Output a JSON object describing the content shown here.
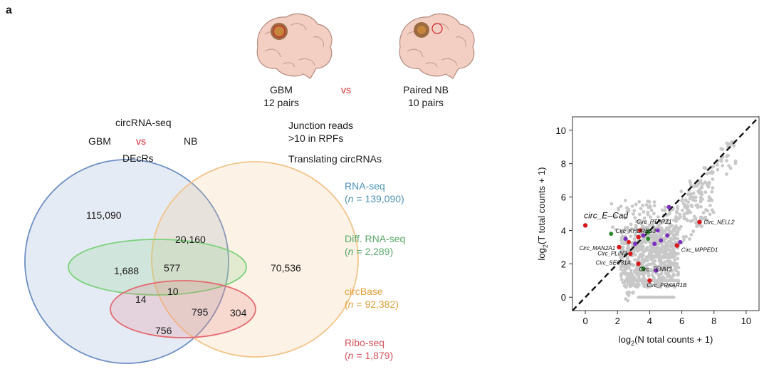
{
  "panel_label": "a",
  "brains": {
    "gbm_label_line1": "GBM",
    "gbm_label_line2": "12 pairs",
    "vs": "vs",
    "nb_label_line1": "Paired NB",
    "nb_label_line2": "10 pairs"
  },
  "workflow": {
    "title": "circRNA-seq",
    "gbm": "GBM",
    "vs": "vs",
    "nb": "NB",
    "decrs": "DEcRs",
    "junction_line1": "Junction reads",
    "junction_line2": ">10 in RPFs",
    "translating": "Translating circRNAs"
  },
  "venn": {
    "regions": {
      "rna_only": "115,090",
      "circbase_only": "70,536",
      "rna_circbase": "20,160",
      "rna_diff": "1,688",
      "rna_diff_circbase": "577",
      "rna_diff_ribo": "14",
      "all_four": "10",
      "rna_circbase_ribo": "795",
      "circbase_ribo": "304",
      "rna_ribo": "756"
    },
    "legend": [
      {
        "name": "RNA-seq",
        "n": "139,090",
        "color": "#4e93b4"
      },
      {
        "name": "Diff. RNA-seq",
        "n": "2,289",
        "color": "#5aa86a"
      },
      {
        "name": "circBase",
        "n": "92,382",
        "color": "#e0a13b"
      },
      {
        "name": "Ribo-seq",
        "n": "1,879",
        "color": "#d9545d"
      }
    ],
    "n_prefix": "(n = ",
    "n_suffix": ")"
  },
  "colors": {
    "rna": "#6d8fc4",
    "diff": "#7bd17b",
    "circbase": "#f3c48a",
    "ribo": "#e46a72",
    "accent_red": "#d3262f"
  },
  "chart_data": {
    "type": "scatter",
    "xlabel": "log2(N total counts + 1)",
    "ylabel": "log2(T total counts + 1)",
    "xlim": [
      -0.8,
      10.8
    ],
    "ylim": [
      -0.8,
      10.8
    ],
    "xticks": [
      0,
      2,
      4,
      6,
      8,
      10
    ],
    "yticks": [
      0,
      2,
      4,
      6,
      8,
      10
    ],
    "diagonal": true,
    "highlighted": [
      {
        "label": "circ_E–Cad",
        "x": 0.0,
        "y": 4.3,
        "color": "red"
      },
      {
        "label": "Circ_NELL2",
        "x": 7.1,
        "y": 4.5,
        "color": "red"
      },
      {
        "label": "Circ_PTPRZ1",
        "x": 3.9,
        "y": 3.9,
        "color": "green"
      },
      {
        "label": "Circ_KHDRBS3",
        "x": 3.3,
        "y": 3.6,
        "color": "red"
      },
      {
        "label": "Circ_MAN2A1",
        "x": 2.1,
        "y": 3.0,
        "color": "red"
      },
      {
        "label": "Circ_MPPED1",
        "x": 5.7,
        "y": 3.1,
        "color": "red"
      },
      {
        "label": "Circ_PLIN2",
        "x": 2.8,
        "y": 2.6,
        "color": "red"
      },
      {
        "label": "Circ_SEC31A",
        "x": 3.3,
        "y": 2.0,
        "color": "red"
      },
      {
        "label": "Circ_TENM3",
        "x": 3.6,
        "y": 1.7,
        "color": "green"
      },
      {
        "label": "Circ_PRKAR1B",
        "x": 4.0,
        "y": 1.0,
        "color": "red"
      }
    ],
    "extra_colored_points": [
      {
        "x": 1.6,
        "y": 3.8,
        "color": "green"
      },
      {
        "x": 3.6,
        "y": 3.7,
        "color": "purple"
      },
      {
        "x": 3.9,
        "y": 3.5,
        "color": "green"
      },
      {
        "x": 4.3,
        "y": 3.2,
        "color": "purple"
      },
      {
        "x": 4.7,
        "y": 3.4,
        "color": "purple"
      },
      {
        "x": 5.1,
        "y": 3.7,
        "color": "purple"
      },
      {
        "x": 5.2,
        "y": 5.4,
        "color": "purple"
      },
      {
        "x": 5.9,
        "y": 3.3,
        "color": "purple"
      },
      {
        "x": 4.5,
        "y": 4.0,
        "color": "purple"
      },
      {
        "x": 3.1,
        "y": 3.2,
        "color": "purple"
      },
      {
        "x": 2.5,
        "y": 3.5,
        "color": "purple"
      },
      {
        "x": 4.4,
        "y": 1.6,
        "color": "purple"
      },
      {
        "x": 2.7,
        "y": 3.3,
        "color": "red"
      },
      {
        "x": 3.4,
        "y": 4.0,
        "color": "red"
      }
    ],
    "point_colors": {
      "red": "#d7191c",
      "green": "#2e8b2e",
      "purple": "#7b2fbe",
      "gray": "#c8c8c8"
    }
  }
}
